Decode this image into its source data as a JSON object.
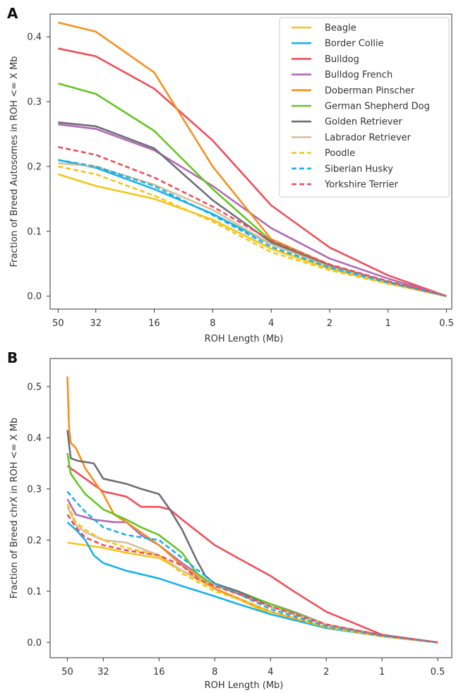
{
  "chart_data": [
    {
      "panel": "A",
      "type": "line",
      "xlabel": "ROH Length (Mb)",
      "ylabel": "Fraction of Breed Autosomes in ROH <= X Mb",
      "x_scale": "log, reversed",
      "xlim": [
        55,
        0.47
      ],
      "ylim": [
        -0.02,
        0.435
      ],
      "x_ticks": [
        50,
        32,
        16,
        8,
        4,
        2,
        1,
        0.5
      ],
      "x_tick_labels": [
        "50",
        "32",
        "16",
        "8",
        "4",
        "2",
        "1",
        "0.5"
      ],
      "y_ticks": [
        0.0,
        0.1,
        0.2,
        0.3,
        0.4
      ],
      "y_tick_labels": [
        "0.0",
        "0.1",
        "0.2",
        "0.3",
        "0.4"
      ],
      "grid": false,
      "legend_position": "top-right",
      "series": [
        {
          "name": "Beagle",
          "color": "#f5c518",
          "dash": false,
          "x": [
            50,
            32,
            16,
            8,
            4,
            2,
            1,
            0.5
          ],
          "y": [
            0.188,
            0.17,
            0.15,
            0.118,
            0.073,
            0.042,
            0.02,
            0.0
          ]
        },
        {
          "name": "Border Collie",
          "color": "#1ab2e8",
          "dash": false,
          "x": [
            50,
            32,
            16,
            8,
            4,
            2,
            1,
            0.5
          ],
          "y": [
            0.21,
            0.198,
            0.165,
            0.127,
            0.08,
            0.046,
            0.022,
            0.0
          ]
        },
        {
          "name": "Bulldog",
          "color": "#f04e5b",
          "dash": false,
          "x": [
            50,
            32,
            16,
            8,
            4,
            2,
            1,
            0.5
          ],
          "y": [
            0.382,
            0.37,
            0.32,
            0.24,
            0.14,
            0.075,
            0.032,
            0.0
          ]
        },
        {
          "name": "Bulldog French",
          "color": "#b06bb5",
          "dash": false,
          "x": [
            50,
            32,
            16,
            8,
            4,
            2,
            1,
            0.5
          ],
          "y": [
            0.265,
            0.258,
            0.225,
            0.17,
            0.105,
            0.058,
            0.027,
            0.0
          ]
        },
        {
          "name": "Doberman Pinscher",
          "color": "#f5901e",
          "dash": false,
          "x": [
            50,
            32,
            16,
            8,
            4,
            2,
            1,
            0.5
          ],
          "y": [
            0.422,
            0.408,
            0.345,
            0.2,
            0.088,
            0.048,
            0.022,
            0.0
          ]
        },
        {
          "name": "German Shepherd Dog",
          "color": "#66c522",
          "dash": false,
          "x": [
            50,
            32,
            16,
            8,
            4,
            2,
            1,
            0.5
          ],
          "y": [
            0.328,
            0.312,
            0.255,
            0.165,
            0.085,
            0.047,
            0.022,
            0.0
          ]
        },
        {
          "name": "Golden Retriever",
          "color": "#6e6e76",
          "dash": false,
          "x": [
            50,
            32,
            16,
            8,
            4,
            2,
            1,
            0.5
          ],
          "y": [
            0.268,
            0.262,
            0.228,
            0.148,
            0.083,
            0.047,
            0.022,
            0.0
          ]
        },
        {
          "name": "Labrador Retriever",
          "color": "#d9bf98",
          "dash": false,
          "x": [
            50,
            32,
            16,
            8,
            4,
            2,
            1,
            0.5
          ],
          "y": [
            0.205,
            0.2,
            0.172,
            0.133,
            0.08,
            0.045,
            0.021,
            0.0
          ]
        },
        {
          "name": "Poodle",
          "color": "#f5c518",
          "dash": true,
          "x": [
            50,
            32,
            16,
            8,
            4,
            2,
            1,
            0.5
          ],
          "y": [
            0.2,
            0.188,
            0.155,
            0.115,
            0.068,
            0.04,
            0.019,
            0.0
          ]
        },
        {
          "name": "Siberian Husky",
          "color": "#1ab2e8",
          "dash": true,
          "x": [
            50,
            32,
            16,
            8,
            4,
            2,
            1,
            0.5
          ],
          "y": [
            0.21,
            0.2,
            0.17,
            0.125,
            0.076,
            0.044,
            0.021,
            0.0
          ]
        },
        {
          "name": "Yorkshire Terrier",
          "color": "#f04e5b",
          "dash": true,
          "x": [
            50,
            32,
            16,
            8,
            4,
            2,
            1,
            0.5
          ],
          "y": [
            0.23,
            0.218,
            0.183,
            0.138,
            0.086,
            0.049,
            0.023,
            0.0
          ]
        }
      ]
    },
    {
      "panel": "B",
      "type": "line",
      "xlabel": "ROH Length (Mb)",
      "ylabel": "Fraction of Breed chrX in ROH <= X Mb",
      "x_scale": "log, reversed",
      "xlim": [
        62,
        0.42
      ],
      "ylim": [
        -0.03,
        0.555
      ],
      "x_ticks": [
        50,
        32,
        16,
        8,
        4,
        2,
        1,
        0.5
      ],
      "x_tick_labels": [
        "50",
        "32",
        "16",
        "8",
        "4",
        "2",
        "1",
        "0.5"
      ],
      "y_ticks": [
        0.0,
        0.1,
        0.2,
        0.3,
        0.4,
        0.5
      ],
      "y_tick_labels": [
        "0.0",
        "0.1",
        "0.2",
        "0.3",
        "0.4",
        "0.5"
      ],
      "grid": false,
      "series": [
        {
          "name": "Beagle",
          "color": "#f5c518",
          "dash": false,
          "x": [
            50,
            40,
            32,
            24,
            16,
            12,
            8,
            6,
            4,
            2,
            1,
            0.5
          ],
          "y": [
            0.195,
            0.19,
            0.185,
            0.175,
            0.165,
            0.14,
            0.105,
            0.085,
            0.055,
            0.03,
            0.012,
            0.0
          ]
        },
        {
          "name": "Border Collie",
          "color": "#1ab2e8",
          "dash": false,
          "x": [
            50,
            45,
            40,
            36,
            32,
            24,
            16,
            12,
            8,
            6,
            4,
            2,
            1,
            0.5
          ],
          "y": [
            0.235,
            0.22,
            0.2,
            0.17,
            0.155,
            0.14,
            0.125,
            0.11,
            0.09,
            0.075,
            0.055,
            0.028,
            0.012,
            0.0
          ]
        },
        {
          "name": "Bulldog",
          "color": "#f04e5b",
          "dash": false,
          "x": [
            50,
            40,
            32,
            24,
            20,
            16,
            14,
            12,
            8,
            6,
            4,
            3,
            2,
            1,
            0.5
          ],
          "y": [
            0.345,
            0.32,
            0.295,
            0.285,
            0.265,
            0.265,
            0.26,
            0.24,
            0.19,
            0.165,
            0.13,
            0.1,
            0.06,
            0.015,
            0.0
          ]
        },
        {
          "name": "Bulldog French",
          "color": "#b06bb5",
          "dash": false,
          "x": [
            50,
            45,
            36,
            28,
            24,
            20,
            16,
            12,
            8,
            4,
            3,
            2,
            1,
            0.5
          ],
          "y": [
            0.28,
            0.25,
            0.24,
            0.235,
            0.235,
            0.21,
            0.19,
            0.155,
            0.11,
            0.075,
            0.06,
            0.035,
            0.014,
            0.0
          ]
        },
        {
          "name": "Doberman Pinscher",
          "color": "#f5901e",
          "dash": false,
          "x": [
            50,
            49,
            48,
            45,
            40,
            32,
            28,
            24,
            20,
            16,
            12,
            8,
            4,
            2,
            1,
            0.5
          ],
          "y": [
            0.52,
            0.42,
            0.39,
            0.38,
            0.34,
            0.29,
            0.25,
            0.235,
            0.215,
            0.19,
            0.15,
            0.105,
            0.06,
            0.03,
            0.012,
            0.0
          ]
        },
        {
          "name": "German Shepherd Dog",
          "color": "#66c522",
          "dash": false,
          "x": [
            50,
            48,
            44,
            40,
            32,
            24,
            20,
            16,
            12,
            10,
            8,
            6,
            4,
            2,
            1,
            0.5
          ],
          "y": [
            0.37,
            0.33,
            0.31,
            0.29,
            0.26,
            0.24,
            0.225,
            0.21,
            0.175,
            0.135,
            0.11,
            0.1,
            0.075,
            0.035,
            0.014,
            0.0
          ]
        },
        {
          "name": "Golden Retriever",
          "color": "#6e6e76",
          "dash": false,
          "x": [
            50,
            48,
            44,
            36,
            32,
            24,
            20,
            16,
            14,
            12,
            10,
            9,
            8,
            6,
            4,
            2,
            1,
            0.5
          ],
          "y": [
            0.415,
            0.36,
            0.355,
            0.35,
            0.32,
            0.31,
            0.3,
            0.29,
            0.26,
            0.22,
            0.16,
            0.13,
            0.115,
            0.1,
            0.07,
            0.035,
            0.014,
            0.0
          ]
        },
        {
          "name": "Labrador Retriever",
          "color": "#d9bf98",
          "dash": false,
          "x": [
            50,
            45,
            40,
            32,
            24,
            16,
            12,
            8,
            6,
            4,
            2,
            1,
            0.5
          ],
          "y": [
            0.265,
            0.23,
            0.215,
            0.2,
            0.195,
            0.17,
            0.14,
            0.11,
            0.095,
            0.07,
            0.035,
            0.013,
            0.0
          ]
        },
        {
          "name": "Poodle",
          "color": "#f5c518",
          "dash": true,
          "x": [
            50,
            45,
            40,
            32,
            24,
            16,
            12,
            8,
            6,
            4,
            2,
            1,
            0.5
          ],
          "y": [
            0.27,
            0.235,
            0.22,
            0.2,
            0.185,
            0.17,
            0.135,
            0.1,
            0.085,
            0.06,
            0.03,
            0.012,
            0.0
          ]
        },
        {
          "name": "Siberian Husky",
          "color": "#1ab2e8",
          "dash": true,
          "x": [
            50,
            45,
            40,
            32,
            24,
            16,
            12,
            8,
            6,
            4,
            2,
            1,
            0.5
          ],
          "y": [
            0.295,
            0.275,
            0.255,
            0.225,
            0.21,
            0.2,
            0.165,
            0.115,
            0.095,
            0.065,
            0.032,
            0.013,
            0.0
          ]
        },
        {
          "name": "Yorkshire Terrier",
          "color": "#f04e5b",
          "dash": true,
          "x": [
            50,
            45,
            40,
            32,
            24,
            16,
            12,
            10,
            8,
            6,
            4,
            2,
            1,
            0.5
          ],
          "y": [
            0.25,
            0.225,
            0.205,
            0.19,
            0.18,
            0.17,
            0.15,
            0.125,
            0.11,
            0.095,
            0.07,
            0.035,
            0.014,
            0.0
          ]
        }
      ]
    }
  ]
}
